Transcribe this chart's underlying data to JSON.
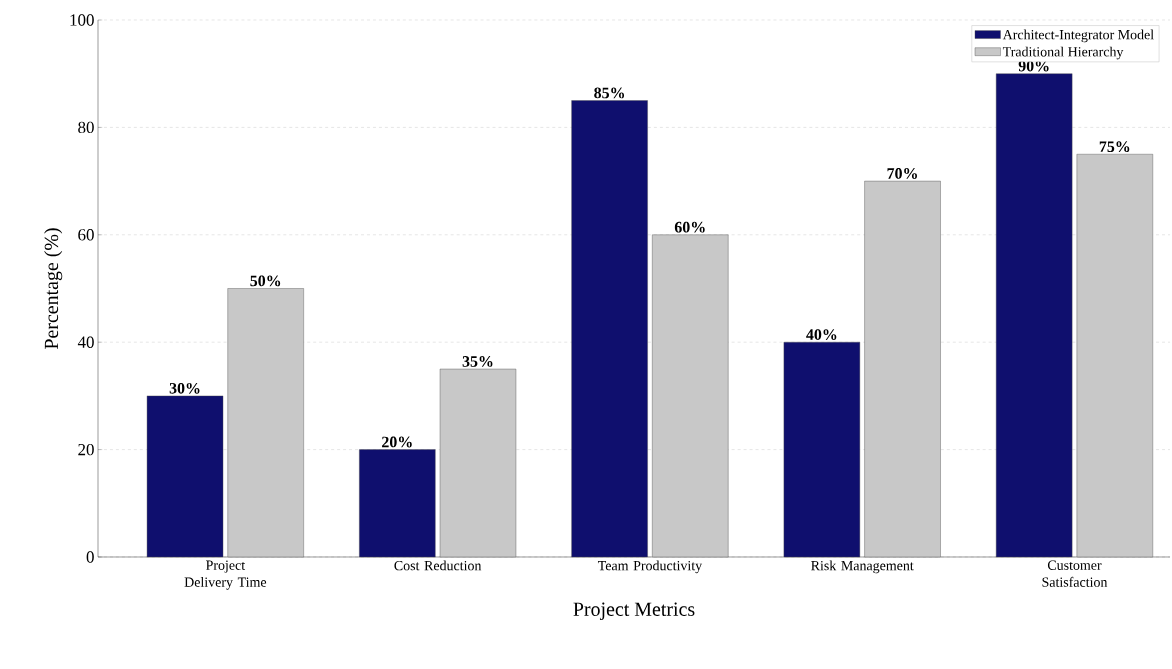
{
  "chart_data": {
    "type": "bar",
    "xlabel": "Project Metrics",
    "ylabel": "Percentage (%)",
    "categories": [
      "Project Delivery Time",
      "Cost Reduction",
      "Team Productivity",
      "Risk Management",
      "Customer Satisfaction"
    ],
    "series": [
      {
        "name": "Architect-Integrator Model",
        "color": "#0f0f6e",
        "values": [
          30,
          20,
          85,
          40,
          90
        ],
        "value_labels": [
          "30%",
          "20%",
          "85%",
          "40%",
          "90%"
        ]
      },
      {
        "name": "Traditional Hierarchy",
        "color": "#c8c8c8",
        "values": [
          50,
          35,
          60,
          70,
          75
        ],
        "value_labels": [
          "50%",
          "35%",
          "60%",
          "70%",
          "75%"
        ]
      }
    ],
    "ylim": [
      0,
      100
    ],
    "yticks": [
      0,
      20,
      40,
      60,
      80,
      100
    ],
    "grid": "y",
    "legend": "top right"
  }
}
